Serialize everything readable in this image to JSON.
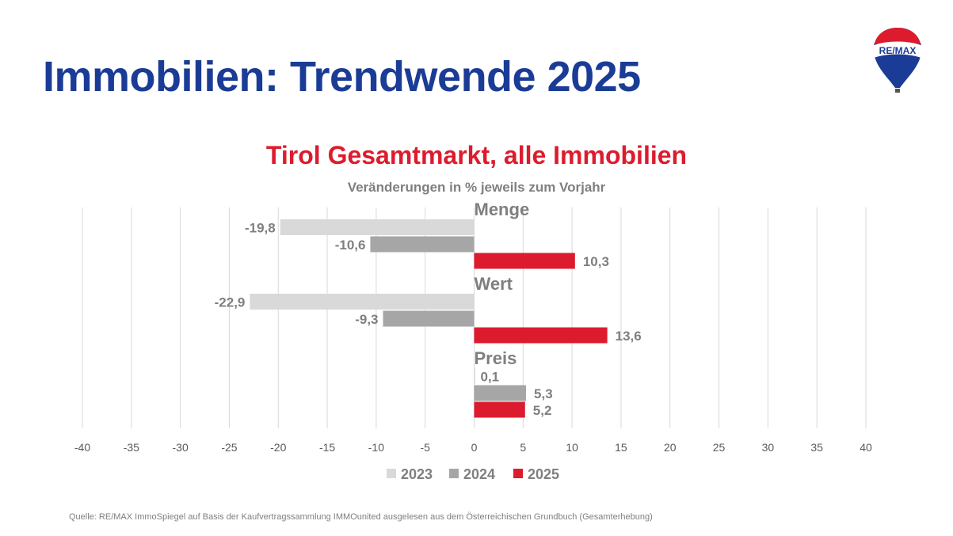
{
  "header": {
    "title": "Immobilien: Trendwende 2025",
    "logo_text": "RE/MAX"
  },
  "chart_data": {
    "type": "bar",
    "orientation": "horizontal",
    "title": "Tirol Gesamtmarkt, alle Immobilien",
    "subtitle": "Veränderungen in % jeweils zum Vorjahr",
    "categories": [
      "Menge",
      "Wert",
      "Preis"
    ],
    "series": [
      {
        "name": "2023",
        "color": "#d9d9d9",
        "values": [
          -19.8,
          -22.9,
          0.1
        ],
        "labels": [
          "-19,8",
          "-22,9",
          "0,1"
        ]
      },
      {
        "name": "2024",
        "color": "#a6a6a6",
        "values": [
          -10.6,
          -9.3,
          5.3
        ],
        "labels": [
          "-10,6",
          "-9,3",
          "5,3"
        ]
      },
      {
        "name": "2025",
        "color": "#dc1c2e",
        "values": [
          10.3,
          13.6,
          5.2
        ],
        "labels": [
          "10,3",
          "13,6",
          "5,2"
        ]
      }
    ],
    "xlim": [
      -40,
      40
    ],
    "xticks": [
      "-40",
      "-35",
      "-30",
      "-25",
      "-20",
      "-15",
      "-10",
      "-5",
      "0",
      "5",
      "10",
      "15",
      "20",
      "25",
      "30",
      "35",
      "40"
    ],
    "grid": true,
    "legend": "bottom"
  },
  "footer": {
    "source": "Quelle: RE/MAX ImmoSpiegel auf Basis der Kaufvertragssammlung IMMOunited ausgelesen aus dem Österreichischen Grundbuch (Gesamterhebung)"
  }
}
